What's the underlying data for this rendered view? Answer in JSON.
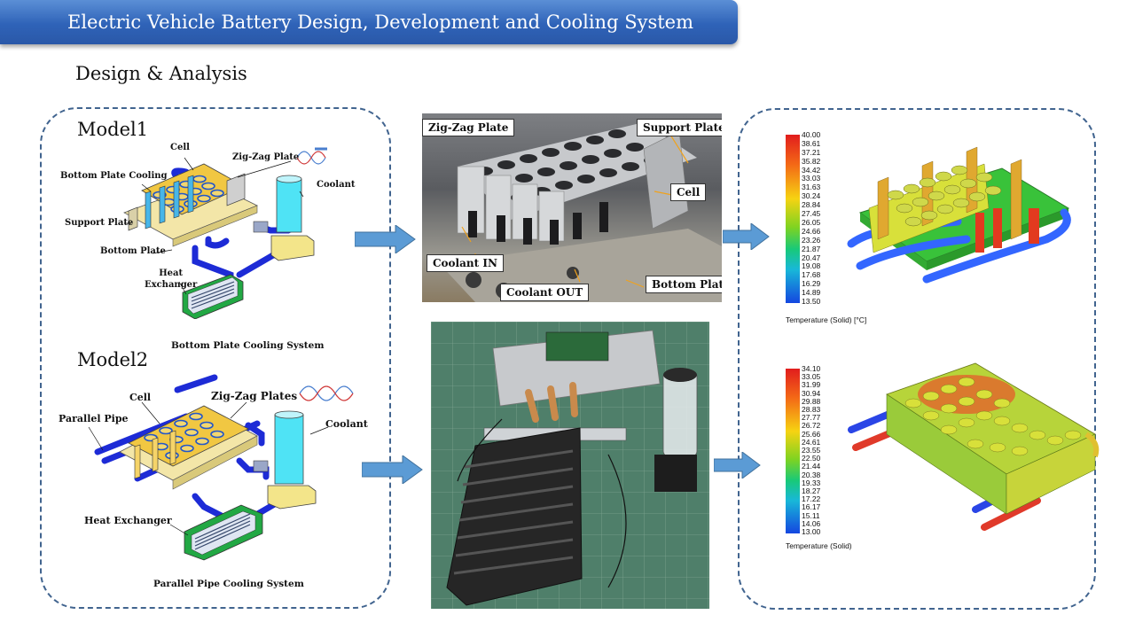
{
  "title": "Electric Vehicle Battery Design, Development and Cooling System",
  "section_heading": "Design & Analysis",
  "model1": {
    "label": "Model1",
    "labels": {
      "cell": "Cell",
      "zigzag": "Zig-Zag Plate",
      "bottom_plate_cooling": "Bottom  Plate Cooling",
      "support_plate": "Support Plate",
      "bottom_plate": "Bottom Plate",
      "coolant": "Coolant",
      "heat_exchanger": "Heat\nExchanger"
    },
    "caption": "Bottom Plate Cooling System"
  },
  "model2": {
    "label": "Model2",
    "labels": {
      "cell": "Cell",
      "zigzag": "Zig-Zag Plates",
      "parallel_pipe": "Parallel Pipe",
      "coolant": "Coolant",
      "heat_exchanger": "Heat Exchanger"
    },
    "caption": "Parallel Pipe Cooling System"
  },
  "photo1": {
    "labels": {
      "zigzag_plate": "Zig-Zag Plate",
      "support_plates": "Support Plates",
      "cell": "Cell",
      "coolant_in": "Coolant IN",
      "coolant_out": "Coolant OUT",
      "bottom_plate": "Bottom Plate"
    }
  },
  "legend1": {
    "ticks": [
      "40.00",
      "38.61",
      "37.21",
      "35.82",
      "34.42",
      "33.03",
      "31.63",
      "30.24",
      "28.84",
      "27.45",
      "26.05",
      "24.66",
      "23.26",
      "21.87",
      "20.47",
      "19.08",
      "17.68",
      "16.29",
      "14.89",
      "13.50"
    ],
    "unit": "Temperature (Solid) [°C]"
  },
  "legend2": {
    "ticks": [
      "34.10",
      "33.05",
      "31.99",
      "30.94",
      "29.88",
      "28.83",
      "27.77",
      "26.72",
      "25.66",
      "24.61",
      "23.55",
      "22.50",
      "21.44",
      "20.38",
      "19.33",
      "18.27",
      "17.22",
      "16.17",
      "15.11",
      "14.06",
      "13.00"
    ],
    "unit": "Temperature (Solid)"
  },
  "colors": {
    "banner": "#2f63b8",
    "panel_border": "#41648f",
    "arrow": "#5b9bd5",
    "pipe": "#1d2bd6",
    "coolant": "#4fe3f5"
  }
}
